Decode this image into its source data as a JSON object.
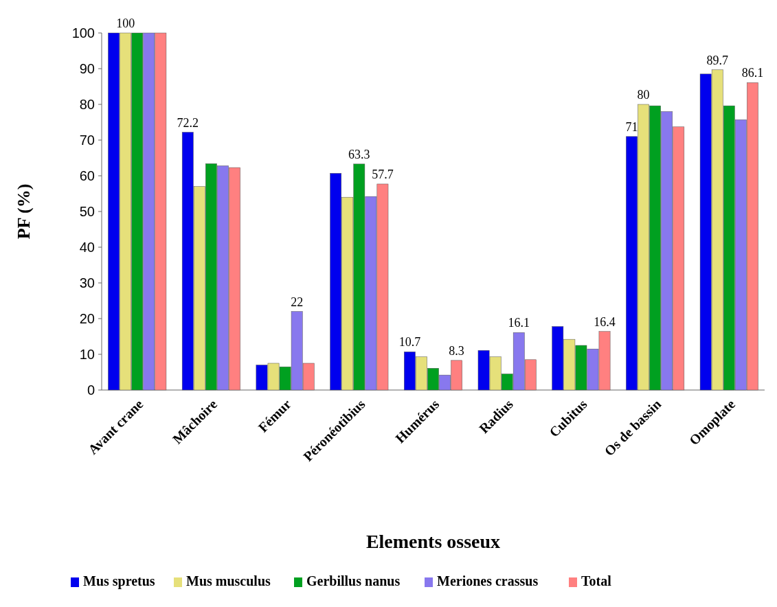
{
  "chart_data": {
    "type": "bar",
    "xlabel": "Elements osseux",
    "ylabel": "PF (%)",
    "categories": [
      "Avant crane",
      "Mâchoire",
      "Fémur",
      "Péronéotibius",
      "Humérus",
      "Radius",
      "Cubitus",
      "Os de bassin",
      "Omoplate"
    ],
    "series": [
      {
        "name": "Mus spretus",
        "color": "#0000ee",
        "values": [
          100,
          72.2,
          7,
          60.7,
          10.7,
          11.1,
          17.8,
          71,
          88.5
        ],
        "value_labels": [
          null,
          "72.2",
          null,
          null,
          "10.7",
          null,
          null,
          "71",
          null
        ]
      },
      {
        "name": "Mus musculus",
        "color": "#e6e07a",
        "values": [
          100,
          57,
          7.5,
          54,
          9.3,
          9.3,
          14.2,
          80,
          89.7
        ],
        "value_labels": [
          "100",
          null,
          null,
          null,
          null,
          null,
          null,
          "80",
          "89.7"
        ]
      },
      {
        "name": "Gerbillus nanus",
        "color": "#00a020",
        "values": [
          100,
          63.4,
          6.5,
          63.3,
          6.1,
          4.5,
          12.5,
          79.6,
          79.6
        ],
        "value_labels": [
          null,
          null,
          null,
          "63.3",
          null,
          null,
          null,
          null,
          null
        ]
      },
      {
        "name": "Meriones crassus",
        "color": "#8878ee",
        "values": [
          100,
          62.8,
          22,
          54.2,
          4.2,
          16.1,
          11.5,
          78,
          75.7
        ],
        "value_labels": [
          null,
          null,
          "22",
          null,
          null,
          "16.1",
          null,
          null,
          null
        ]
      },
      {
        "name": "Total",
        "color": "#ff8080",
        "values": [
          100,
          62.3,
          7.5,
          57.7,
          8.3,
          8.5,
          16.4,
          73.7,
          86.1
        ],
        "value_labels": [
          null,
          null,
          null,
          "57.7",
          "8.3",
          null,
          "16.4",
          null,
          "86.1"
        ]
      }
    ],
    "ylim": [
      0,
      100
    ],
    "yticks": [
      0,
      10,
      20,
      30,
      40,
      50,
      60,
      70,
      80,
      90,
      100
    ],
    "grid": false,
    "legend": "bottom"
  }
}
